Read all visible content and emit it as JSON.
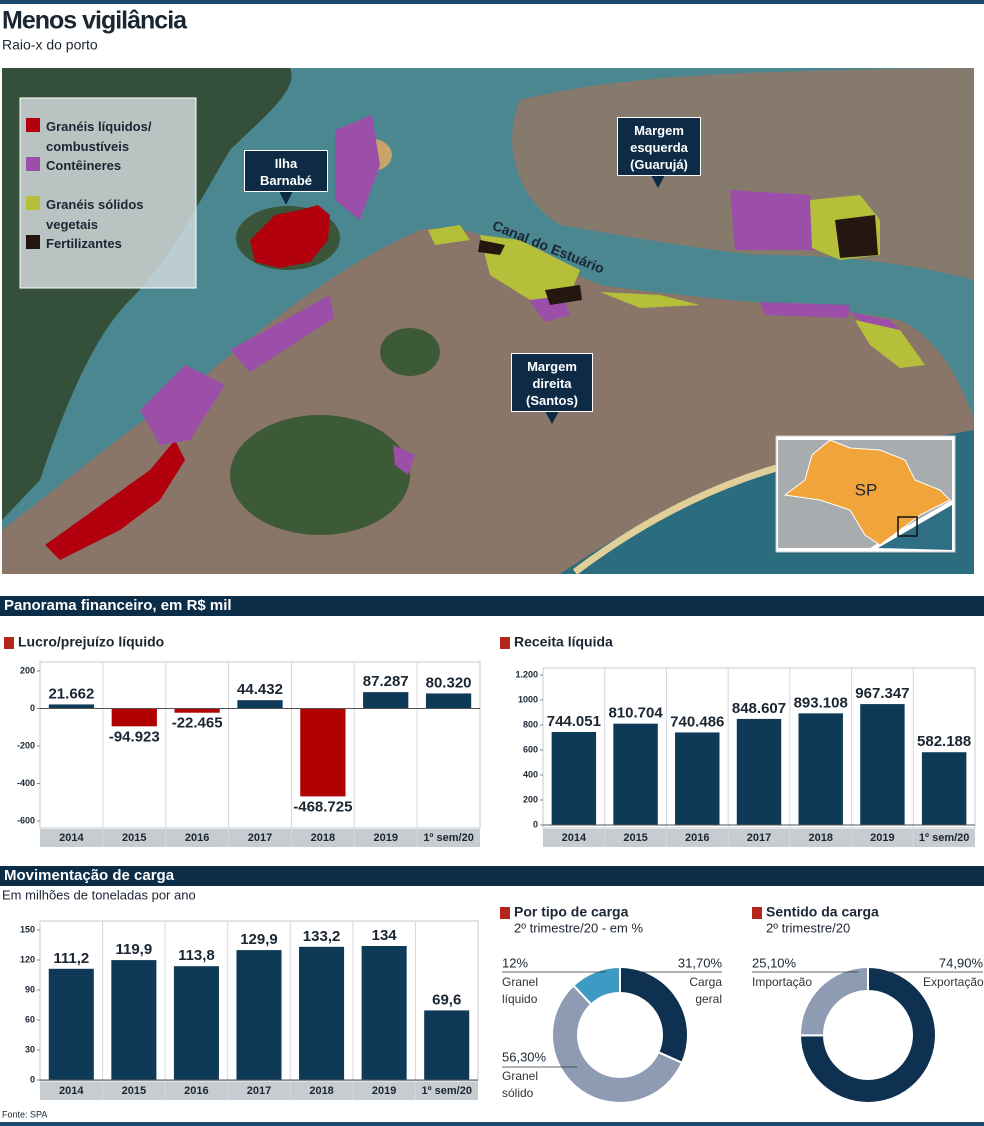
{
  "header": {
    "title": "Menos vigilância",
    "subtitle": "Raio-x do porto"
  },
  "map": {
    "legend": [
      {
        "label": "Granéis líquidos/ combustíveis",
        "color": "#b3000f"
      },
      {
        "label": "Contêineres",
        "color": "#9c4fa8"
      },
      {
        "label": "Granéis sólidos vegetais",
        "color": "#b5bf3a"
      },
      {
        "label": "Fertilizantes",
        "color": "#24170f"
      }
    ],
    "callouts": [
      {
        "lines": [
          "Ilha",
          "Barnabé"
        ]
      },
      {
        "lines": [
          "Margem",
          "esquerda",
          "(Guarujá)"
        ]
      },
      {
        "lines": [
          "Margem",
          "direita",
          "(Santos)"
        ]
      }
    ],
    "channel_label": "Canal do Estuário",
    "inset_label": "SP"
  },
  "sections": [
    "Panorama financeiro, em R$ mil",
    "Movimentação de carga"
  ],
  "cargo_unit": "Em milhões de toneladas por ano",
  "source": "Fonte: SPA",
  "chart_data": [
    {
      "type": "bar",
      "title": "Lucro/prejuízo líquido",
      "categories": [
        "2014",
        "2015",
        "2016",
        "2017",
        "2018",
        "2019",
        "1º sem/20"
      ],
      "values": [
        21.662,
        -94.923,
        -22.465,
        44.432,
        -468.725,
        87.287,
        80.32
      ],
      "value_labels": [
        "21.662",
        "-94.923",
        "-22.465",
        "44.432",
        "-468.725",
        "87.287",
        "80.320"
      ],
      "color": "#0e3a58",
      "negative_color": "#b00000",
      "ylim": [
        -600,
        200
      ],
      "yticks": [
        200,
        0,
        -200,
        -400,
        -600
      ],
      "grid": false
    },
    {
      "type": "bar",
      "title": "Receita líquida",
      "categories": [
        "2014",
        "2015",
        "2016",
        "2017",
        "2018",
        "2019",
        "1º sem/20"
      ],
      "values": [
        744.051,
        810.704,
        740.486,
        848.607,
        893.108,
        967.347,
        582.188
      ],
      "value_labels": [
        "744.051",
        "810.704",
        "740.486",
        "848.607",
        "893.108",
        "967.347",
        "582.188"
      ],
      "color": "#0e3a58",
      "ylim": [
        0,
        1200
      ],
      "yticks": [
        0,
        200,
        400,
        600,
        800,
        1000,
        {
          "value": 1200,
          "label": "1.200"
        }
      ],
      "grid": false
    },
    {
      "type": "bar",
      "categories": [
        "2014",
        "2015",
        "2016",
        "2017",
        "2018",
        "2019",
        "1º sem/20"
      ],
      "values": [
        111.2,
        119.9,
        113.8,
        129.9,
        133.2,
        134,
        69.6
      ],
      "value_labels": [
        "111,2",
        "119,9",
        "113,8",
        "129,9",
        "133,2",
        "134",
        "69,6"
      ],
      "color": "#0e3a58",
      "ylim": [
        0,
        150
      ],
      "yticks": [
        0,
        30,
        60,
        90,
        120,
        150
      ],
      "grid": false
    },
    {
      "type": "donut",
      "title": "Por tipo de carga",
      "subtitle": "2º trimestre/20 - em %",
      "categories": [
        "Carga geral",
        "Granel sólido",
        "Granel líquido"
      ],
      "values": [
        31.7,
        56.3,
        12
      ],
      "value_labels": [
        "31,70%",
        "56,30%",
        "12%"
      ],
      "colors": [
        "#0e3151",
        "#8e9cb3",
        "#3d9ac2"
      ]
    },
    {
      "type": "donut",
      "title": "Sentido da carga",
      "subtitle": "2º trimestre/20",
      "categories": [
        "Exportação",
        "Importação"
      ],
      "values": [
        74.9,
        25.1
      ],
      "value_labels": [
        "74,90%",
        "25,10%"
      ],
      "colors": [
        "#0e3151",
        "#8e9cb3"
      ]
    }
  ]
}
